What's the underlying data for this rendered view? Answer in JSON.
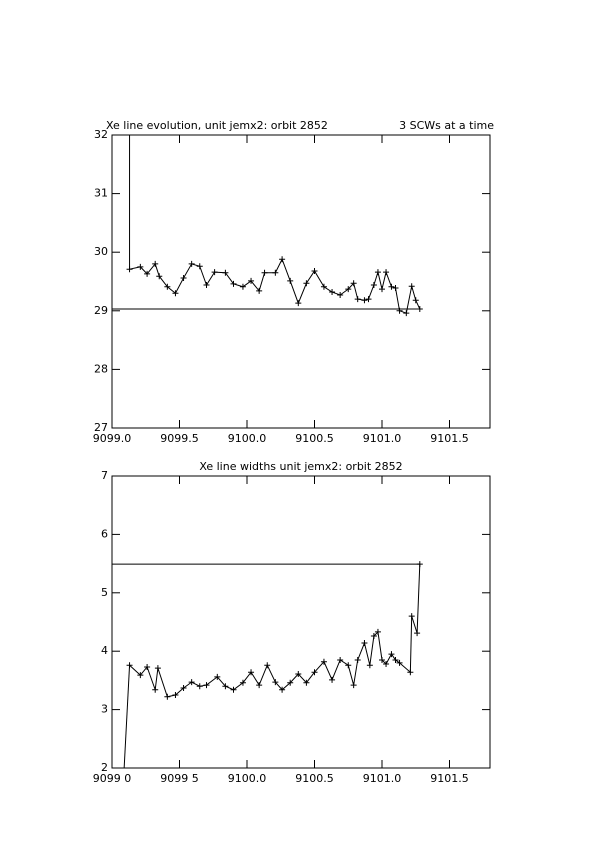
{
  "chart_data": [
    {
      "type": "line",
      "title": "Xe line evolution, unit jemx2: orbit 2852",
      "subtitle": "3 SCWs at a time",
      "xlim": [
        9099.0,
        9101.8
      ],
      "ylim": [
        27,
        32
      ],
      "xticks": [
        {
          "value": 9099.0,
          "label": "9099.0"
        },
        {
          "value": 9099.5,
          "label": "9099.5"
        },
        {
          "value": 9100.0,
          "label": "9100.0"
        },
        {
          "value": 9100.5,
          "label": "9100.5"
        },
        {
          "value": 9101.0,
          "label": "9101.0"
        },
        {
          "value": 9101.5,
          "label": "9101.5"
        }
      ],
      "yticks": [
        27,
        28,
        29,
        30,
        31,
        32
      ],
      "series": [
        {
          "color": "#000000",
          "marker": "none",
          "x": [
            9099.13,
            9099.13
          ],
          "values": [
            32,
            29.71
          ]
        },
        {
          "color": "#000000",
          "marker": "+",
          "x": [
            9099.13,
            9099.21,
            9099.26,
            9099.32,
            9099.35,
            9099.41,
            9099.47,
            9099.53,
            9099.59,
            9099.65,
            9099.7,
            9099.76,
            9099.84,
            9099.9,
            9099.97,
            9100.03,
            9100.09,
            9100.13,
            9100.21,
            9100.26,
            9100.32,
            9100.38,
            9100.44,
            9100.5,
            9100.57,
            9100.63,
            9100.69,
            9100.75,
            9100.79,
            9100.82,
            9100.87,
            9100.9,
            9100.94,
            9100.97,
            9101.0,
            9101.03,
            9101.07,
            9101.1,
            9101.13,
            9101.18,
            9101.22,
            9101.25,
            9101.28
          ],
          "values": [
            29.71,
            29.75,
            29.63,
            29.8,
            29.59,
            29.41,
            29.3,
            29.56,
            29.8,
            29.76,
            29.44,
            29.66,
            29.65,
            29.46,
            29.41,
            29.51,
            29.34,
            29.65,
            29.65,
            29.88,
            29.51,
            29.13,
            29.47,
            29.68,
            29.41,
            29.32,
            29.27,
            29.37,
            29.47,
            29.2,
            29.18,
            29.2,
            29.44,
            29.66,
            29.37,
            29.66,
            29.41,
            29.39,
            29.0,
            28.96,
            29.42,
            29.18,
            29.03
          ]
        },
        {
          "color": "#000000",
          "marker": "none",
          "x": [
            9099.0,
            9101.28
          ],
          "values": [
            29.03,
            29.03
          ]
        }
      ]
    },
    {
      "type": "line",
      "title": "Xe line widths unit jemx2: orbit 2852",
      "xlim": [
        9099.0,
        9101.8
      ],
      "ylim": [
        2,
        7
      ],
      "xticks": [
        {
          "value": 9099.0,
          "label": "9099 0"
        },
        {
          "value": 9099.5,
          "label": "9099 5"
        },
        {
          "value": 9100.0,
          "label": "9100.0"
        },
        {
          "value": 9100.5,
          "label": "9100.5"
        },
        {
          "value": 9101.0,
          "label": "9101.0"
        },
        {
          "value": 9101.5,
          "label": "9101.5"
        }
      ],
      "yticks": [
        2,
        3,
        4,
        5,
        6,
        7
      ],
      "series": [
        {
          "color": "#000000",
          "marker": "none",
          "x": [
            9099.09,
            9099.13
          ],
          "values": [
            2.0,
            3.76
          ]
        },
        {
          "color": "#000000",
          "marker": "+",
          "x": [
            9099.13,
            9099.21,
            9099.26,
            9099.32,
            9099.34,
            9099.41,
            9099.47,
            9099.53,
            9099.59,
            9099.65,
            9099.7,
            9099.78,
            9099.84,
            9099.9,
            9099.97,
            9100.03,
            9100.09,
            9100.15,
            9100.21,
            9100.26,
            9100.32,
            9100.38,
            9100.44,
            9100.5,
            9100.57,
            9100.63,
            9100.69,
            9100.75,
            9100.79,
            9100.82,
            9100.87,
            9100.91,
            9100.94,
            9100.97,
            9101.0,
            9101.03,
            9101.07,
            9101.1,
            9101.13,
            9101.21,
            9101.22,
            9101.26,
            9101.28
          ],
          "values": [
            3.76,
            3.59,
            3.73,
            3.34,
            3.71,
            3.22,
            3.25,
            3.37,
            3.47,
            3.4,
            3.42,
            3.56,
            3.4,
            3.34,
            3.46,
            3.64,
            3.42,
            3.76,
            3.47,
            3.34,
            3.46,
            3.61,
            3.46,
            3.64,
            3.82,
            3.51,
            3.85,
            3.76,
            3.42,
            3.85,
            4.14,
            3.76,
            4.26,
            4.33,
            3.85,
            3.78,
            3.95,
            3.85,
            3.8,
            3.64,
            4.6,
            4.31,
            5.49
          ]
        },
        {
          "color": "#000000",
          "marker": "none",
          "x": [
            9099.0,
            9101.28
          ],
          "values": [
            5.49,
            5.49
          ]
        }
      ]
    }
  ]
}
